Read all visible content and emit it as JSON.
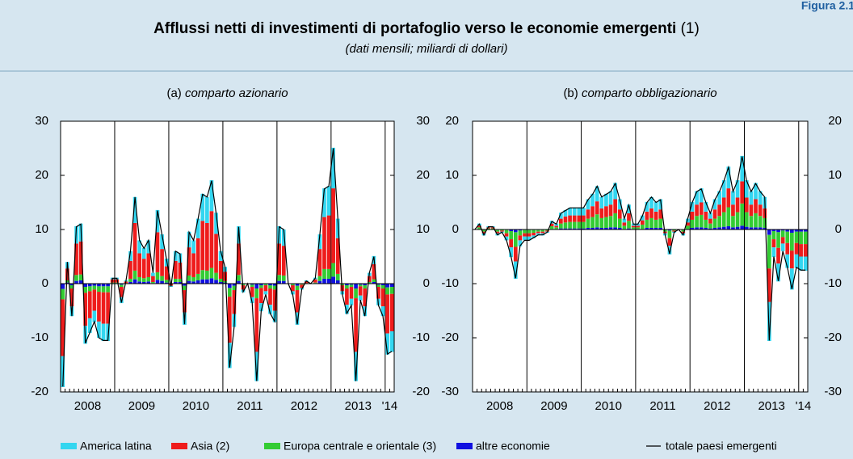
{
  "figure_label": "Figura 2.1",
  "title": "Afflussi netti di investimenti di portafoglio verso le economie emergenti",
  "title_note": "(1)",
  "subtitle": "(dati mensili; miliardi di dollari)",
  "chart_data": [
    {
      "type": "stacked_bar_line",
      "title_prefix": "(a)",
      "title": "comparto azionario",
      "years": [
        {
          "label": "2008",
          "months": 12
        },
        {
          "label": "2009",
          "months": 12
        },
        {
          "label": "2010",
          "months": 12
        },
        {
          "label": "2011",
          "months": 12
        },
        {
          "label": "2012",
          "months": 12
        },
        {
          "label": "2013",
          "months": 12
        },
        {
          "label": "'14",
          "months": 2
        }
      ],
      "ylim": [
        -20,
        30
      ],
      "yticks": [
        -20,
        -10,
        0,
        10,
        20,
        30
      ],
      "series": [
        {
          "name": "America latina",
          "color": "#33d6f0",
          "values": [
            -5.7,
            1.2,
            -1.8,
            3.2,
            3.3,
            -3.3,
            -2.7,
            -2.1,
            -3,
            -3.2,
            -3.2,
            0.3,
            0.3,
            -1.1,
            0.2,
            1.8,
            4.8,
            2.4,
            2,
            2.4,
            0.6,
            4.1,
            2.7,
            1.4,
            -0.2,
            1.8,
            1.7,
            -2.3,
            2.9,
            2.4,
            3.6,
            5,
            4.8,
            5.7,
            3.9,
            1.8,
            0.9,
            -4.7,
            -2.4,
            3.2,
            -0.5,
            0,
            -1.1,
            -5.4,
            -1.5,
            -0.6,
            -1.7,
            -2.1,
            3.2,
            3,
            0,
            -0.6,
            -2.3,
            -0.3,
            0.2,
            0,
            0.3,
            2.7,
            5.3,
            5.4,
            7.5,
            3.6,
            -0.6,
            -1.7,
            -1.2,
            -5.4,
            -0.9,
            -1.8,
            0.6,
            1.5,
            -1.2,
            -1.8,
            -3.9,
            -3.8
          ]
        },
        {
          "name": "Asia (2)",
          "color": "#ee1c1c",
          "values": [
            -10.5,
            2.2,
            -3.3,
            5.8,
            6.1,
            -6.1,
            -5,
            -3.9,
            -5.5,
            -5.8,
            -5.8,
            0.6,
            0.6,
            -1.9,
            0.3,
            3.3,
            8.8,
            4.4,
            3.6,
            4.4,
            1.1,
            7.4,
            5,
            2.5,
            -0.3,
            3.3,
            3,
            -4.1,
            5.2,
            4.4,
            6.6,
            9.1,
            8.8,
            10.5,
            7.2,
            3.3,
            1.7,
            -8.5,
            -4.4,
            5.8,
            -0.8,
            0,
            -1.9,
            -9.9,
            -2.8,
            -1.1,
            -3,
            -3.9,
            5.8,
            5.5,
            0,
            -1.1,
            -4.1,
            -0.6,
            0.3,
            0,
            0.6,
            5,
            9.6,
            9.9,
            13.8,
            6.6,
            -1.1,
            -3,
            -2.2,
            -9.9,
            -1.7,
            -3.3,
            1.1,
            2.8,
            -2.2,
            -3.3,
            -7.2,
            -6.9
          ]
        },
        {
          "name": "Europa centrale e orientale (3)",
          "color": "#33cc33",
          "values": [
            -1.9,
            0.4,
            -0.6,
            1.1,
            1.1,
            -1.1,
            -0.9,
            -0.7,
            -1,
            -1.1,
            -1.1,
            0.1,
            0.1,
            -0.4,
            0.1,
            0.6,
            1.6,
            0.8,
            0.7,
            0.8,
            0.2,
            1.4,
            0.9,
            0.5,
            -0.1,
            0.6,
            0.6,
            -0.8,
            1,
            0.8,
            1.2,
            1.7,
            1.6,
            1.9,
            1.3,
            0.6,
            0.3,
            -1.6,
            -0.8,
            1.1,
            -0.2,
            0,
            -0.4,
            -1.8,
            -0.5,
            -0.2,
            -0.6,
            -0.7,
            1.1,
            1,
            0,
            -0.2,
            -0.8,
            -0.1,
            0.1,
            0,
            0.1,
            0.9,
            1.8,
            1.8,
            2.5,
            1.2,
            -0.2,
            -0.6,
            -0.4,
            -1.8,
            -0.3,
            -0.6,
            0.2,
            0.5,
            -0.4,
            -0.6,
            -1.3,
            -1.3
          ]
        },
        {
          "name": "altre economie",
          "color": "#1010e0",
          "values": [
            -1,
            0.2,
            -0.3,
            0.5,
            0.6,
            -0.6,
            -0.5,
            -0.4,
            -0.5,
            -0.5,
            -0.5,
            0.1,
            0.1,
            -0.2,
            0,
            0.3,
            0.8,
            0.4,
            0.3,
            0.4,
            0.1,
            0.7,
            0.5,
            0.2,
            0,
            0.3,
            0.3,
            -0.4,
            0.5,
            0.4,
            0.6,
            0.8,
            0.8,
            1,
            0.7,
            0.3,
            0.2,
            -0.8,
            -0.4,
            0.5,
            -0.1,
            0,
            -0.2,
            -0.9,
            -0.3,
            -0.1,
            -0.3,
            -0.4,
            0.5,
            0.5,
            0,
            -0.1,
            -0.4,
            -0.1,
            0,
            0,
            0.1,
            0.5,
            0.9,
            0.9,
            1.3,
            0.6,
            -0.1,
            -0.3,
            -0.2,
            -0.9,
            -0.2,
            -0.3,
            0.1,
            0.3,
            -0.2,
            -0.3,
            -0.7,
            -0.6
          ]
        },
        {
          "name": "totale paesi emergenti",
          "color": "#000000",
          "type": "line",
          "values": [
            -19,
            4,
            -6,
            10.5,
            11,
            -11,
            -9,
            -7,
            -10,
            -10.5,
            -10.5,
            1,
            1,
            -3.5,
            0.5,
            6,
            16,
            8,
            6.5,
            8,
            2,
            13.5,
            9,
            4.5,
            -0.5,
            6,
            5.5,
            -7.5,
            9.5,
            8,
            12,
            16.5,
            16,
            19,
            13,
            6,
            3,
            -15.5,
            -8,
            10.5,
            -1.5,
            0,
            -3.5,
            -18,
            -5,
            -2,
            -5.5,
            -7,
            10.5,
            10,
            0,
            -2,
            -7.5,
            -1,
            0.5,
            0,
            1,
            9,
            17.5,
            18,
            25,
            12,
            -2,
            -5.5,
            -4,
            -18,
            -3,
            -6,
            2,
            5,
            -4,
            -6,
            -13,
            -12.5
          ]
        }
      ]
    },
    {
      "type": "stacked_bar_line",
      "title_prefix": "(b)",
      "title": "comparto obbligazionario",
      "years": [
        {
          "label": "2008",
          "months": 12
        },
        {
          "label": "2009",
          "months": 12
        },
        {
          "label": "2010",
          "months": 12
        },
        {
          "label": "2011",
          "months": 12
        },
        {
          "label": "2012",
          "months": 12
        },
        {
          "label": "2013",
          "months": 12
        },
        {
          "label": "'14",
          "months": 2
        }
      ],
      "ylim": [
        -30,
        20
      ],
      "yticks": [
        -30,
        -20,
        -10,
        0,
        10,
        20
      ],
      "series": [
        {
          "name": "America latina",
          "color": "#33d6f0",
          "values": [
            0,
            0.4,
            -0.4,
            0.2,
            0.2,
            -0.4,
            -0.2,
            -0.7,
            -1.8,
            -3.2,
            -1.1,
            -0.7,
            -0.7,
            -0.5,
            -0.4,
            -0.4,
            -0.2,
            0.5,
            0.4,
            1.1,
            1.2,
            1.4,
            1.4,
            1.4,
            1.4,
            1.9,
            2.3,
            2.8,
            2.1,
            2.3,
            2.5,
            3,
            1.9,
            0.7,
            1.6,
            0.4,
            0.4,
            0.9,
            1.8,
            2.1,
            1.8,
            1.9,
            -0.4,
            -1.6,
            -0.2,
            0,
            -0.4,
            0.7,
            1.8,
            2.5,
            2.6,
            1.8,
            1.1,
            1.9,
            2.5,
            3.2,
            4,
            2.5,
            3.2,
            4.7,
            3.2,
            2.5,
            3,
            2.5,
            2.1,
            -7.2,
            -1.8,
            -3.3,
            -1.4,
            -2.5,
            -3.9,
            -2.5,
            -2.6,
            -2.6
          ]
        },
        {
          "name": "Asia (2)",
          "color": "#ee1c1c",
          "values": [
            0,
            0.3,
            -0.3,
            0.2,
            0.2,
            -0.3,
            -0.2,
            -0.6,
            -1.5,
            -2.7,
            -0.9,
            -0.6,
            -0.6,
            -0.5,
            -0.3,
            -0.3,
            -0.2,
            0.5,
            0.3,
            0.9,
            1.1,
            1.2,
            1.2,
            1.2,
            1.2,
            1.7,
            2,
            2.4,
            1.8,
            2,
            2.1,
            2.6,
            1.7,
            0.6,
            1.4,
            0.3,
            0.3,
            0.8,
            1.5,
            1.8,
            1.5,
            1.7,
            -0.3,
            -1.4,
            -0.2,
            0,
            -0.3,
            0.6,
            1.5,
            2.1,
            2.3,
            1.5,
            0.9,
            1.7,
            2.1,
            2.7,
            3.5,
            2.1,
            2.7,
            4.1,
            2.7,
            2.1,
            2.6,
            2.1,
            1.8,
            -6.2,
            -1.5,
            -2.9,
            -1.2,
            -2.1,
            -3.3,
            -2.1,
            -2.3,
            -2.3
          ]
        },
        {
          "name": "Europa centrale e orientale (3)",
          "color": "#33cc33",
          "values": [
            0,
            0.3,
            -0.3,
            0.2,
            0.2,
            -0.3,
            -0.2,
            -0.6,
            -1.5,
            -2.7,
            -0.9,
            -0.6,
            -0.6,
            -0.5,
            -0.3,
            -0.3,
            -0.2,
            0.5,
            0.3,
            0.9,
            1.1,
            1.2,
            1.2,
            1.2,
            1.2,
            1.7,
            2,
            2.4,
            1.8,
            2,
            2.1,
            2.6,
            1.7,
            0.6,
            1.4,
            0.3,
            0.3,
            0.8,
            1.5,
            1.8,
            1.5,
            1.7,
            -0.3,
            -1.4,
            -0.2,
            0,
            -0.3,
            0.6,
            1.5,
            2.1,
            2.3,
            1.5,
            0.9,
            1.7,
            2.1,
            2.7,
            3.5,
            2.1,
            2.7,
            4.1,
            2.7,
            2.1,
            2.6,
            2.1,
            1.8,
            -6.2,
            -1.5,
            -2.9,
            -1.2,
            -2.1,
            -3.3,
            -2.1,
            -2.3,
            -2.3
          ]
        },
        {
          "name": "altre economie",
          "color": "#1010e0",
          "values": [
            0,
            0.1,
            -0.1,
            0,
            0,
            -0.1,
            0,
            -0.1,
            -0.3,
            -0.5,
            -0.2,
            -0.1,
            -0.1,
            -0.1,
            -0.1,
            -0.1,
            0,
            0.1,
            0.1,
            0.2,
            0.2,
            0.2,
            0.2,
            0.2,
            0.2,
            0.3,
            0.3,
            0.4,
            0.3,
            0.3,
            0.4,
            0.4,
            0.3,
            0.1,
            0.2,
            0.1,
            0.1,
            0.1,
            0.3,
            0.3,
            0.3,
            0.3,
            -0.1,
            -0.2,
            0,
            0,
            -0.1,
            0.1,
            0.3,
            0.4,
            0.4,
            0.3,
            0.2,
            0.3,
            0.4,
            0.5,
            0.6,
            0.4,
            0.5,
            0.7,
            0.5,
            0.4,
            0.4,
            0.4,
            0.3,
            -1,
            -0.3,
            -0.5,
            -0.2,
            -0.4,
            -0.6,
            -0.4,
            -0.4,
            -0.4
          ]
        },
        {
          "name": "totale paesi emergenti",
          "color": "#000000",
          "type": "line",
          "values": [
            0,
            1,
            -1,
            0.5,
            0.5,
            -1,
            -0.5,
            -2,
            -5,
            -9,
            -3,
            -2,
            -2,
            -1.5,
            -1,
            -1,
            -0.5,
            1.5,
            1,
            3,
            3.5,
            4,
            4,
            4,
            4,
            5.5,
            6.5,
            8,
            6,
            6.5,
            7,
            8.5,
            5.5,
            2,
            4.5,
            1,
            1,
            2.5,
            5,
            6,
            5,
            5.5,
            -1,
            -4.5,
            -0.5,
            0,
            -1,
            2,
            5,
            7,
            7.5,
            5,
            3,
            5.5,
            7,
            9,
            11.5,
            7,
            9,
            13.5,
            9,
            7,
            8.5,
            7,
            6,
            -20.5,
            -5,
            -9.5,
            -4,
            -7,
            -11,
            -7,
            -7.5,
            -7.5
          ]
        }
      ]
    }
  ]
}
